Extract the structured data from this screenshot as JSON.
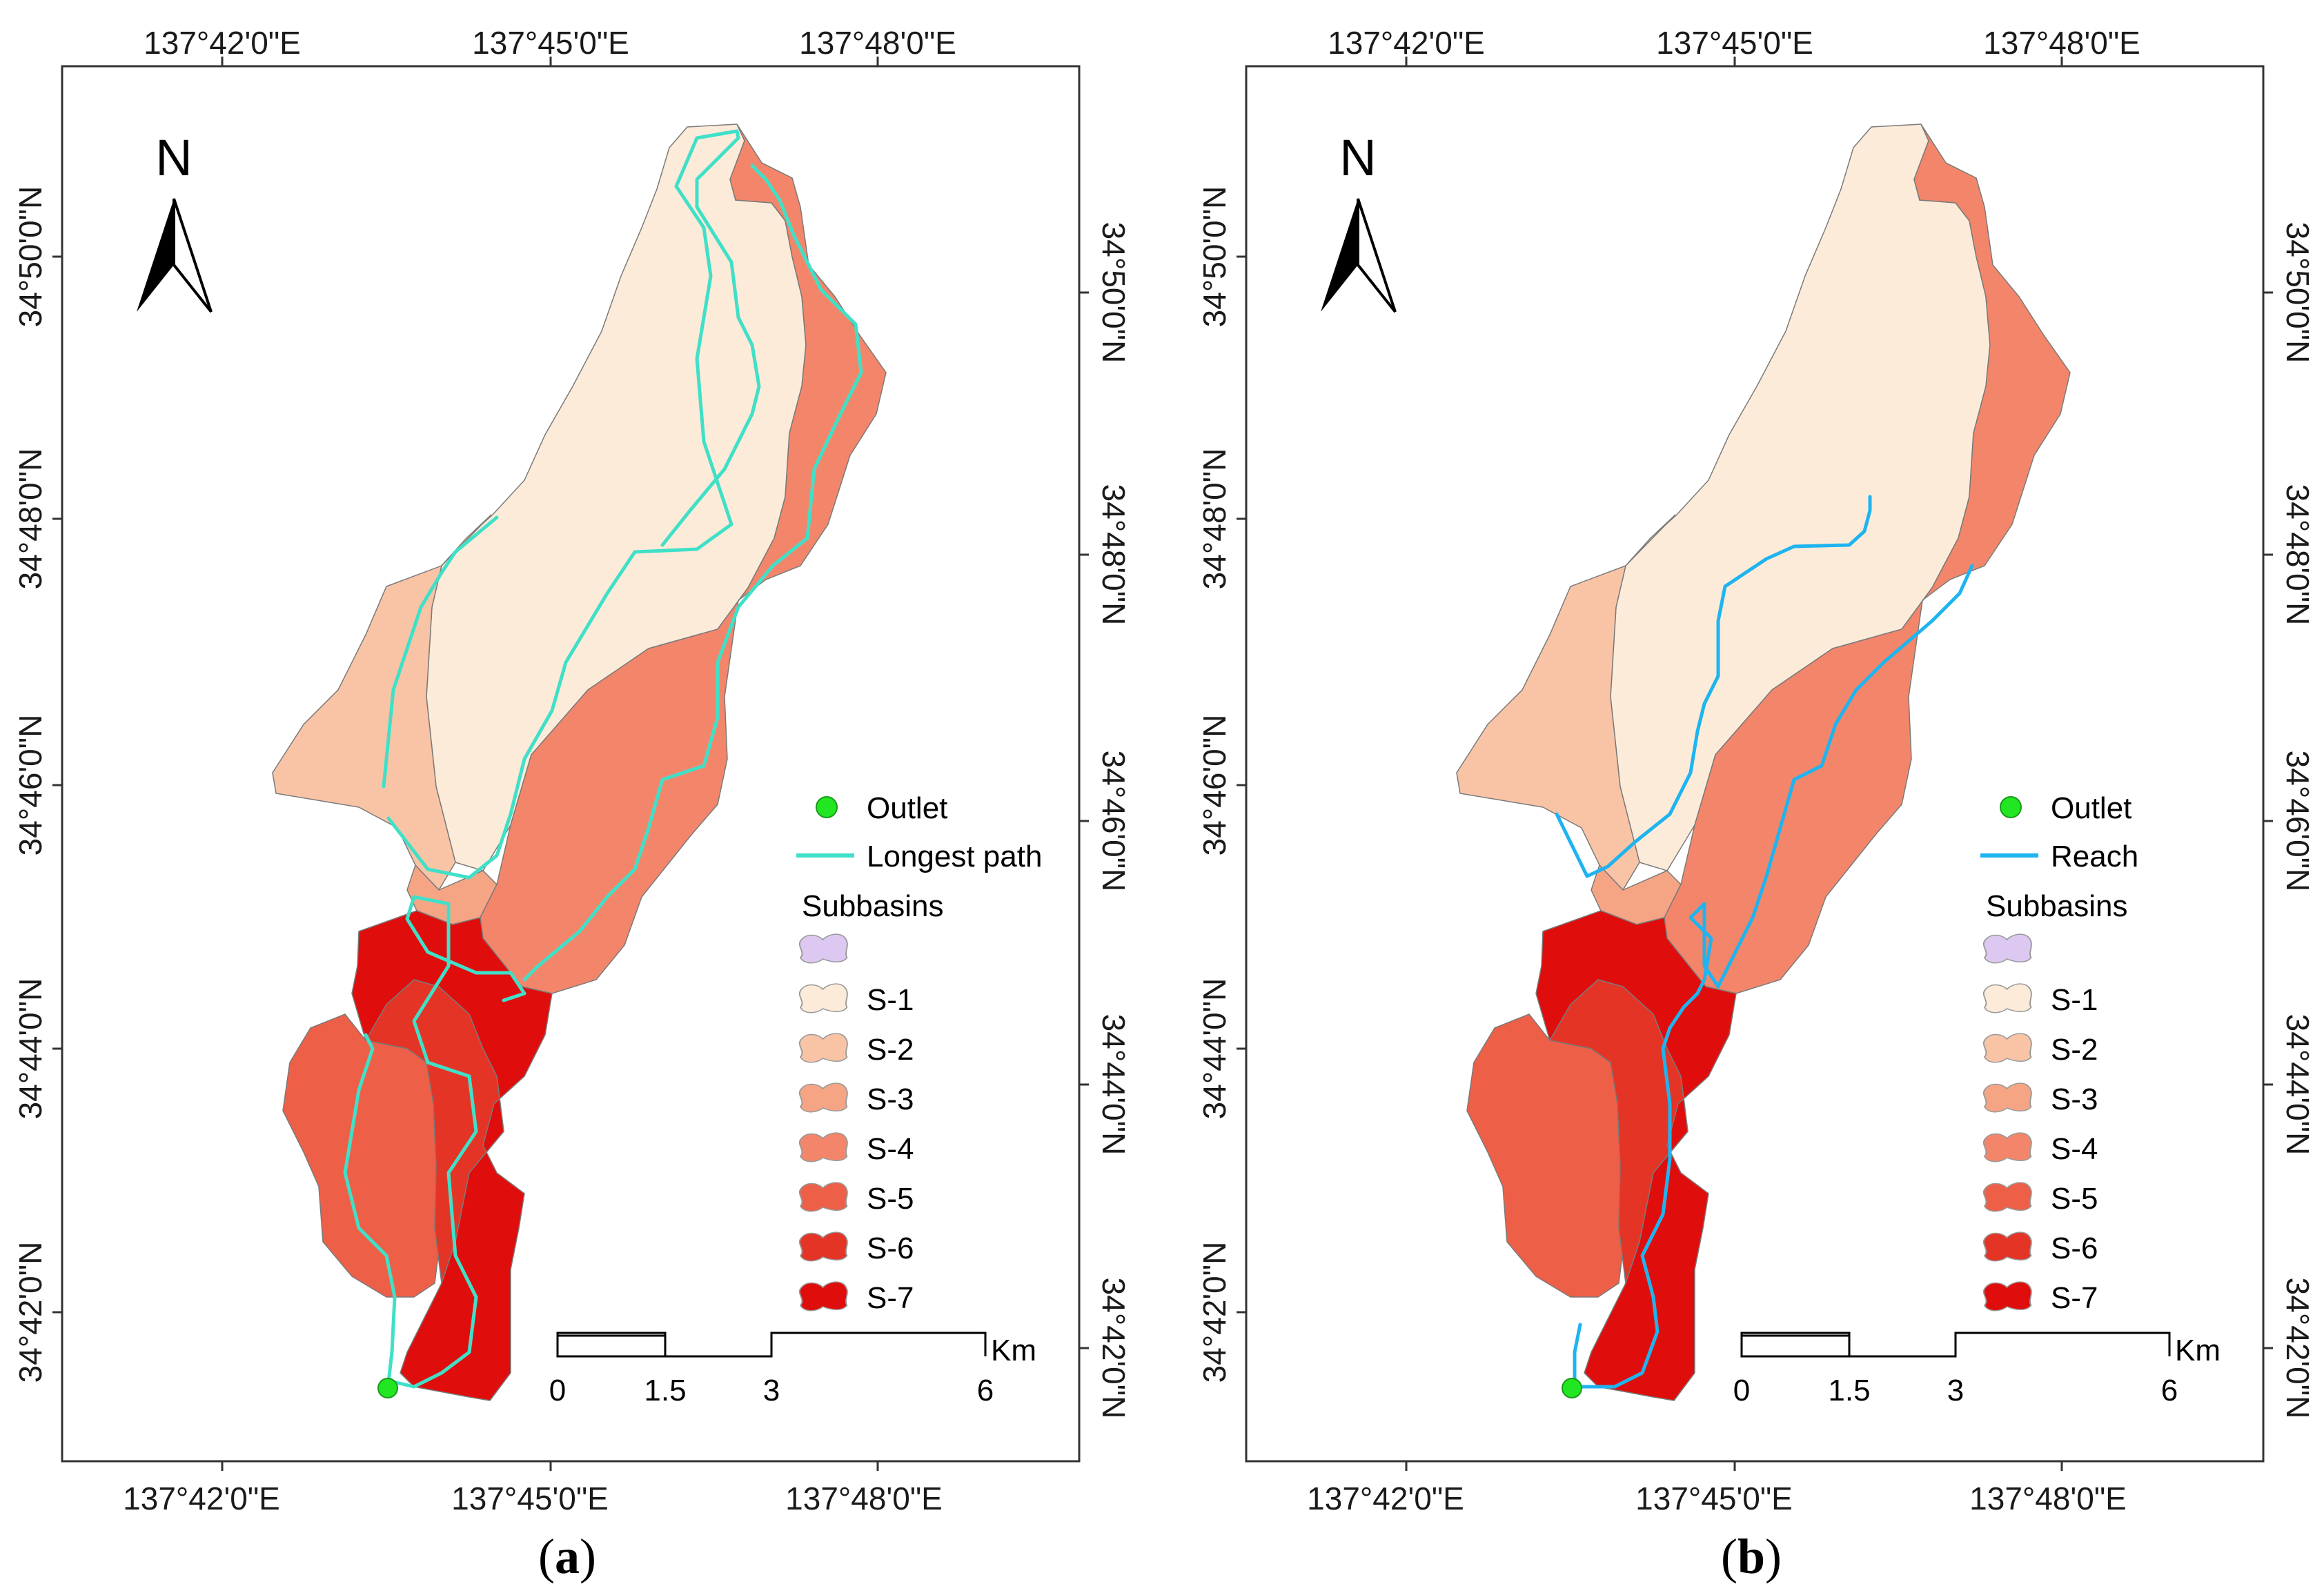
{
  "panels": [
    {
      "caption_open": "(",
      "caption_letter": "a",
      "caption_close": ")",
      "north_label": "N",
      "top_lon_ticks": [
        "137°42'0\"E",
        "137°45'0\"E",
        "137°48'0\"E"
      ],
      "bottom_lon_ticks": [
        "137°42'0\"E",
        "137°45'0\"E",
        "137°48'0\"E"
      ],
      "left_lat_ticks": [
        "34°50'0\"N",
        "34°48'0\"N",
        "34°46'0\"N",
        "34°44'0\"N",
        "34°42'0\"N"
      ],
      "right_lat_ticks": [
        "34°50'0\"N",
        "34°48'0\"N",
        "34°46'0\"N",
        "34°44'0\"N",
        "34°42'0\"N"
      ],
      "legend": {
        "outlet": "Outlet",
        "line_label": "Longest path",
        "line_color": "#40e0c8",
        "subbasins_title": "Subbasins",
        "subbasins": [
          "",
          "S-1",
          "S-2",
          "S-3",
          "S-4",
          "S-5",
          "S-6",
          "S-7"
        ]
      },
      "scale": {
        "labels": [
          "0",
          "1.5",
          "3",
          "6"
        ],
        "unit": "Km"
      }
    },
    {
      "caption_open": "(",
      "caption_letter": "b",
      "caption_close": ")",
      "north_label": "N",
      "top_lon_ticks": [
        "137°42'0\"E",
        "137°45'0\"E",
        "137°48'0\"E"
      ],
      "bottom_lon_ticks": [
        "137°42'0\"E",
        "137°45'0\"E",
        "137°48'0\"E"
      ],
      "left_lat_ticks": [
        "34°50'0\"N",
        "34°48'0\"N",
        "34°46'0\"N",
        "34°44'0\"N",
        "34°42'0\"N"
      ],
      "right_lat_ticks": [
        "34°50'0\"N",
        "34°48'0\"N",
        "34°46'0\"N",
        "34°44'0\"N",
        "34°42'0\"N"
      ],
      "legend": {
        "outlet": "Outlet",
        "line_label": "Reach",
        "line_color": "#1eb4f0",
        "subbasins_title": "Subbasins",
        "subbasins": [
          "",
          "S-1",
          "S-2",
          "S-3",
          "S-4",
          "S-5",
          "S-6",
          "S-7"
        ]
      },
      "scale": {
        "labels": [
          "0",
          "1.5",
          "3",
          "6"
        ],
        "unit": "Km"
      }
    }
  ],
  "colors": {
    "S-0": "#dcc8f0",
    "S-1": "#fdebd9",
    "S-2": "#f9c4a6",
    "S-3": "#f6a584",
    "S-4": "#f3866a",
    "S-5": "#ee5f48",
    "S-6": "#e43426",
    "S-7": "#e00d0d",
    "outlet": "#22e622"
  }
}
